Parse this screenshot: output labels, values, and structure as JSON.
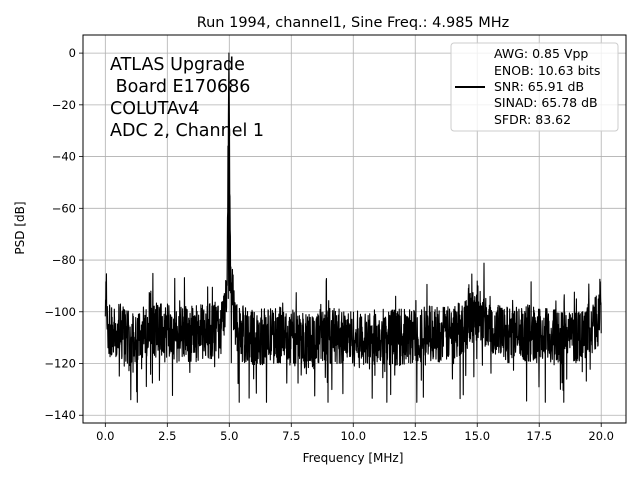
{
  "chart_data": {
    "type": "line",
    "title": "Run 1994, channel1, Sine Freq.: 4.985 MHz",
    "xlabel": "Frequency [MHz]",
    "ylabel": "PSD [dB]",
    "xlim": [
      -0.9,
      21.0
    ],
    "ylim": [
      -143,
      7
    ],
    "xticks": [
      0.0,
      2.5,
      5.0,
      7.5,
      10.0,
      12.5,
      15.0,
      17.5,
      20.0
    ],
    "xtick_labels": [
      "0.0",
      "2.5",
      "5.0",
      "7.5",
      "10.0",
      "12.5",
      "15.0",
      "17.5",
      "20.0"
    ],
    "yticks": [
      0,
      -20,
      -40,
      -60,
      -80,
      -100,
      -120,
      -140
    ],
    "ytick_labels": [
      "0",
      "−20",
      "−40",
      "−60",
      "−80",
      "−100",
      "−120",
      "−140"
    ],
    "grid": true,
    "annotation_lines": [
      "ATLAS Upgrade",
      " Board E170686",
      "COLUTAv4",
      "ADC 2, Channel 1"
    ],
    "legend": {
      "placement": "top-right",
      "lines": [
        "AWG: 0.85 Vpp",
        "ENOB: 10.63 bits",
        "SNR: 65.91 dB",
        "SINAD: 65.78 dB",
        "SFDR: 83.62"
      ]
    },
    "series": [
      {
        "color": "#000000",
        "description_points": {
          "x": [
            0.0,
            0.02,
            0.1,
            0.5,
            1.0,
            2.0,
            3.0,
            4.0,
            4.7,
            4.9,
            4.985,
            5.05,
            5.1,
            5.2,
            5.3,
            6.0,
            7.0,
            8.0,
            9.0,
            10.0,
            10.6,
            11.0,
            12.0,
            13.0,
            14.0,
            14.99,
            15.0,
            15.01,
            16.0,
            17.0,
            18.0,
            19.0,
            19.9,
            19.98,
            20.0
          ],
          "y": [
            -105,
            -87,
            -108,
            -106,
            -110,
            -107,
            -109,
            -108,
            -106,
            -95,
            0,
            -86,
            -92,
            -100,
            -108,
            -110,
            -109,
            -111,
            -109,
            -110,
            -112,
            -109,
            -110,
            -108,
            -109,
            -100,
            -92,
            -100,
            -109,
            -108,
            -110,
            -109,
            -104,
            -92,
            -103
          ]
        }
      }
    ]
  }
}
